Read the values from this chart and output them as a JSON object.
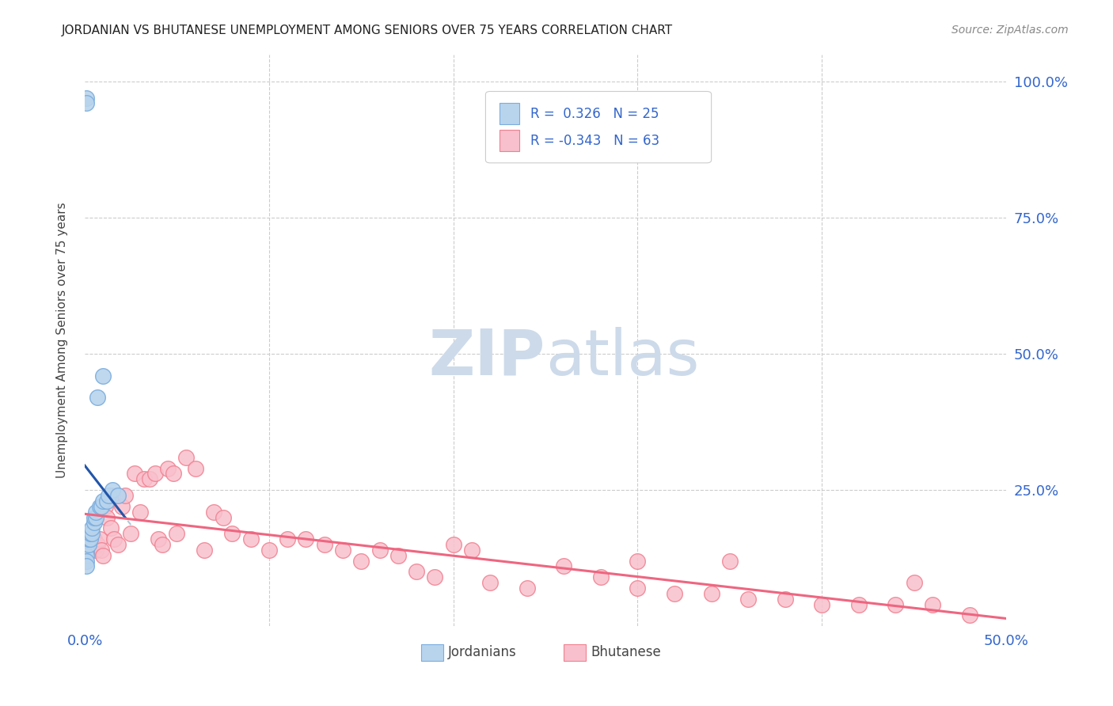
{
  "title": "JORDANIAN VS BHUTANESE UNEMPLOYMENT AMONG SENIORS OVER 75 YEARS CORRELATION CHART",
  "source": "Source: ZipAtlas.com",
  "ylabel_label": "Unemployment Among Seniors over 75 years",
  "xlim": [
    0.0,
    0.5
  ],
  "ylim": [
    0.0,
    1.05
  ],
  "background_color": "#ffffff",
  "grid_color": "#cccccc",
  "jordanian_scatter_color": "#7aadde",
  "jordanian_fill": "#b8d4ed",
  "bhutanese_scatter_color": "#f08090",
  "bhutanese_fill": "#f8c0cc",
  "jordanian_line_color": "#2255aa",
  "bhutanese_line_color": "#ee6680",
  "dashed_line_color": "#b0c8d8",
  "watermark_color": "#cddaea",
  "R_jordan": 0.326,
  "N_jordan": 25,
  "R_bhutan": -0.343,
  "N_bhutan": 63,
  "jordanian_x": [
    0.001,
    0.001,
    0.001,
    0.001,
    0.002,
    0.002,
    0.003,
    0.003,
    0.004,
    0.004,
    0.005,
    0.005,
    0.006,
    0.006,
    0.007,
    0.008,
    0.009,
    0.01,
    0.01,
    0.012,
    0.013,
    0.015,
    0.018,
    0.001,
    0.001
  ],
  "jordanian_y": [
    0.97,
    0.96,
    0.14,
    0.13,
    0.15,
    0.16,
    0.16,
    0.17,
    0.17,
    0.18,
    0.19,
    0.2,
    0.2,
    0.21,
    0.42,
    0.22,
    0.22,
    0.23,
    0.46,
    0.23,
    0.24,
    0.25,
    0.24,
    0.12,
    0.11
  ],
  "bhutanese_x": [
    0.003,
    0.004,
    0.005,
    0.006,
    0.007,
    0.008,
    0.009,
    0.01,
    0.011,
    0.012,
    0.014,
    0.015,
    0.016,
    0.018,
    0.02,
    0.022,
    0.025,
    0.027,
    0.03,
    0.032,
    0.035,
    0.038,
    0.04,
    0.042,
    0.045,
    0.048,
    0.05,
    0.055,
    0.06,
    0.065,
    0.07,
    0.075,
    0.08,
    0.09,
    0.1,
    0.11,
    0.12,
    0.13,
    0.14,
    0.15,
    0.16,
    0.17,
    0.18,
    0.19,
    0.2,
    0.21,
    0.22,
    0.24,
    0.26,
    0.28,
    0.3,
    0.32,
    0.34,
    0.36,
    0.38,
    0.4,
    0.42,
    0.44,
    0.46,
    0.48,
    0.3,
    0.35,
    0.45
  ],
  "bhutanese_y": [
    0.14,
    0.15,
    0.16,
    0.14,
    0.15,
    0.16,
    0.14,
    0.13,
    0.22,
    0.2,
    0.18,
    0.24,
    0.16,
    0.15,
    0.22,
    0.24,
    0.17,
    0.28,
    0.21,
    0.27,
    0.27,
    0.28,
    0.16,
    0.15,
    0.29,
    0.28,
    0.17,
    0.31,
    0.29,
    0.14,
    0.21,
    0.2,
    0.17,
    0.16,
    0.14,
    0.16,
    0.16,
    0.15,
    0.14,
    0.12,
    0.14,
    0.13,
    0.1,
    0.09,
    0.15,
    0.14,
    0.08,
    0.07,
    0.11,
    0.09,
    0.07,
    0.06,
    0.06,
    0.05,
    0.05,
    0.04,
    0.04,
    0.04,
    0.04,
    0.02,
    0.12,
    0.12,
    0.08
  ]
}
